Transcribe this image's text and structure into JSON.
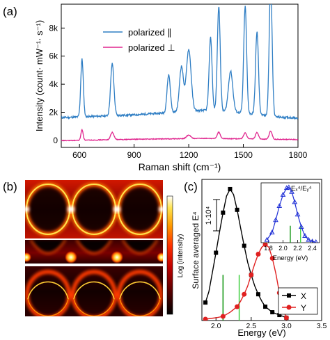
{
  "chart_data": [
    {
      "panel": "(a)",
      "type": "line",
      "xlabel": "Raman shift (cm⁻¹)",
      "ylabel": "Intensity (count· mW⁻¹· s⁻¹)",
      "xlim": [
        500,
        1800
      ],
      "ylim": [
        -500,
        9700
      ],
      "xticks": [
        600,
        900,
        1200,
        1500,
        1800
      ],
      "yticks": [
        0,
        2000,
        4000,
        6000,
        8000
      ],
      "ytick_labels": [
        "0",
        "2k",
        "4k",
        "6k",
        "8k"
      ],
      "legend_position": "upper-left",
      "series": [
        {
          "name": "polarized ∥",
          "color": "#2f7ec4",
          "baseline": [
            [
              500,
              1620
            ],
            [
              700,
              1720
            ],
            [
              900,
              1820
            ],
            [
              1000,
              1900
            ],
            [
              1100,
              1980
            ],
            [
              1200,
              2080
            ],
            [
              1300,
              2150
            ],
            [
              1400,
              2050
            ],
            [
              1500,
              1950
            ],
            [
              1600,
              1800
            ],
            [
              1700,
              1650
            ],
            [
              1800,
              1600
            ]
          ],
          "peaks": [
            [
              614,
              4100,
              7
            ],
            [
              780,
              3700,
              9
            ],
            [
              1090,
              2700,
              9
            ],
            [
              1160,
              3200,
              11
            ],
            [
              1200,
              4400,
              13
            ],
            [
              1320,
              5200,
              8
            ],
            [
              1365,
              7450,
              8
            ],
            [
              1430,
              2900,
              12
            ],
            [
              1510,
              7600,
              8
            ],
            [
              1575,
              5900,
              8
            ],
            [
              1650,
              9500,
              8
            ]
          ]
        },
        {
          "name": "polarized ⊥",
          "color": "#e0258e",
          "baseline": [
            [
              500,
              -20
            ],
            [
              900,
              80
            ],
            [
              1300,
              140
            ],
            [
              1800,
              60
            ]
          ],
          "peaks": [
            [
              614,
              750,
              6
            ],
            [
              780,
              520,
              9
            ],
            [
              1200,
              240,
              12
            ],
            [
              1365,
              460,
              8
            ],
            [
              1510,
              430,
              8
            ],
            [
              1575,
              480,
              8
            ],
            [
              1650,
              580,
              8
            ]
          ]
        }
      ]
    },
    {
      "panel": "(b)",
      "type": "heatmap",
      "colorbar_label": "Log (intensity)",
      "colormap": [
        "#000000",
        "#5a0000",
        "#c00000",
        "#ff3000",
        "#ff9a00",
        "#ffe34d",
        "#ffffff"
      ]
    },
    {
      "panel": "(c)",
      "type": "line",
      "xlabel": "Energy (eV)",
      "ylabel": "Surface averaged E⁴",
      "scale_bar_label": "1·10⁴",
      "xlim": [
        1.8,
        3.5
      ],
      "xticks": [
        2.0,
        2.5,
        3.0,
        3.5
      ],
      "xtick_labels": [
        "2.0",
        "2.5",
        "3.0",
        "3.5"
      ],
      "ylim": [
        0,
        1.0
      ],
      "legend_position": "lower-right",
      "series": [
        {
          "name": "X",
          "color": "#000000",
          "marker": "square",
          "x": [
            1.85,
            1.9,
            2.0,
            2.05,
            2.1,
            2.15,
            2.2,
            2.25,
            2.3,
            2.35,
            2.4,
            2.45,
            2.5,
            2.55,
            2.6,
            2.65,
            2.7,
            2.75,
            2.8,
            2.85,
            2.9,
            2.95,
            3.0
          ],
          "y": [
            0.13,
            0.21,
            0.49,
            0.64,
            0.78,
            0.9,
            0.95,
            0.91,
            0.8,
            0.67,
            0.54,
            0.42,
            0.33,
            0.25,
            0.19,
            0.14,
            0.1,
            0.08,
            0.06,
            0.05,
            0.04,
            0.03,
            0.02
          ]
        },
        {
          "name": "Y",
          "color": "#e02020",
          "marker": "circle",
          "x": [
            1.85,
            2.0,
            2.1,
            2.2,
            2.3,
            2.35,
            2.4,
            2.45,
            2.5,
            2.55,
            2.6,
            2.65,
            2.7,
            2.75,
            2.8,
            2.85,
            2.9,
            2.95,
            3.0
          ],
          "y": [
            0.01,
            0.02,
            0.03,
            0.06,
            0.1,
            0.14,
            0.19,
            0.25,
            0.33,
            0.41,
            0.48,
            0.53,
            0.55,
            0.53,
            0.45,
            0.34,
            0.2,
            0.08,
            0.02
          ]
        }
      ],
      "vertical_lines": [
        {
          "x": 2.1,
          "color": "#1a9a1a",
          "y": 0.33
        },
        {
          "x": 2.33,
          "color": "#4ad24a",
          "y": 0.33
        }
      ],
      "inset": {
        "type": "line",
        "title": "Eₓ⁴/Eᵧ⁴",
        "xlabel": "Energy (eV)",
        "xlim": [
          1.7,
          2.5
        ],
        "xticks": [
          1.8,
          2.0,
          2.2,
          2.4
        ],
        "xtick_labels": [
          "1.8",
          "2.0",
          "2.2",
          "2.4"
        ],
        "ylim": [
          0,
          1.0
        ],
        "series": [
          {
            "name": "",
            "color": "#1f2fd6",
            "marker": "triangle",
            "x": [
              1.78,
              1.85,
              1.9,
              1.95,
              2.0,
              2.05,
              2.08,
              2.12,
              2.16,
              2.2,
              2.25,
              2.3,
              2.35,
              2.4,
              2.45
            ],
            "y": [
              0.05,
              0.18,
              0.4,
              0.65,
              0.85,
              0.97,
              0.98,
              0.9,
              0.72,
              0.5,
              0.28,
              0.12,
              0.05,
              0.02,
              0.01
            ]
          }
        ],
        "vertical_lines": [
          {
            "x": 2.1,
            "color": "#1a9a1a",
            "y": 0.3
          },
          {
            "x": 2.24,
            "color": "#4ad24a",
            "y": 0.3
          }
        ]
      }
    }
  ]
}
